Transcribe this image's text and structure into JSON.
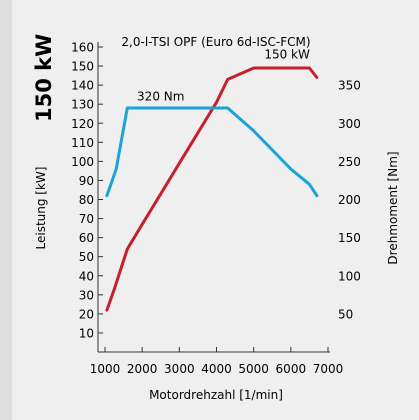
{
  "colors": {
    "power": "#c8202b",
    "torque": "#1aa3d9",
    "axis": "#333333",
    "grid": "#ffffff",
    "background": "#efefef",
    "sidebar": "#dedede"
  },
  "chart_data": {
    "type": "line",
    "title": "2,0-l-TSI OPF (Euro 6d-ISC-FCM)",
    "headline": "150 kW",
    "xlabel": "Motordrehzahl [1/min]",
    "ylabel_left": "Leistung [kW]",
    "ylabel_right": "Drehmoment [Nm]",
    "xlim": [
      1000,
      7000
    ],
    "ylim_left": [
      0,
      160
    ],
    "ylim_right": [
      0,
      400
    ],
    "x_ticks": [
      1000,
      2000,
      3000,
      4000,
      5000,
      6000,
      7000
    ],
    "y_ticks_left": [
      10,
      20,
      30,
      40,
      50,
      60,
      70,
      80,
      90,
      100,
      110,
      120,
      130,
      140,
      150,
      160
    ],
    "y_ticks_right": [
      50,
      100,
      150,
      200,
      250,
      300,
      350
    ],
    "grid": false,
    "series": [
      {
        "name": "power",
        "axis": "left",
        "color": "#c8202b",
        "x": [
          1050,
          1250,
          1600,
          2000,
          2500,
          3000,
          3500,
          4000,
          4300,
          5000,
          6000,
          6500,
          6700
        ],
        "y": [
          22,
          33,
          54,
          67,
          83,
          99,
          115,
          131,
          143,
          149,
          149,
          149,
          144
        ]
      },
      {
        "name": "torque",
        "axis": "right",
        "color": "#1aa3d9",
        "x": [
          1050,
          1300,
          1600,
          2000,
          3000,
          4000,
          4300,
          5000,
          6000,
          6500,
          6700
        ],
        "y": [
          205,
          240,
          320,
          320,
          320,
          320,
          320,
          290,
          240,
          220,
          205
        ]
      }
    ],
    "annotations": [
      {
        "text": "150 kW",
        "x": 5900,
        "y": 154,
        "axis": "left",
        "color": "#000000"
      },
      {
        "text": "320 Nm",
        "x": 2500,
        "y": 330,
        "axis": "right",
        "color": "#000000"
      }
    ]
  }
}
